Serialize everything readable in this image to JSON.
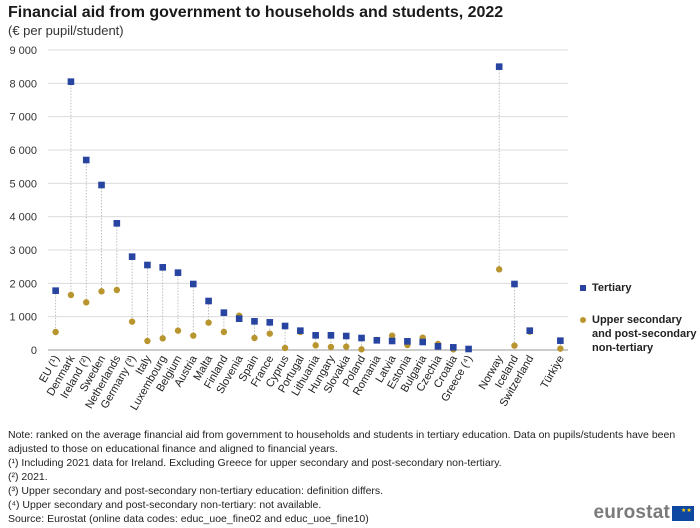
{
  "title": "Financial aid from government to households and students, 2022",
  "subtitle": "(€ per pupil/student)",
  "chart_data": {
    "type": "scatter",
    "categories": [
      "EU (¹)",
      "Denmark",
      "Ireland (²)",
      "Sweden",
      "Netherlands",
      "Germany (³)",
      "Italy",
      "Luxembourg",
      "Belgium",
      "Austria",
      "Malta",
      "Finland",
      "Slovenia",
      "Spain",
      "France",
      "Cyprus",
      "Portugal",
      "Lithuania",
      "Hungary",
      "Slovakia",
      "Poland",
      "Romania",
      "Latvia",
      "Estonia",
      "Bulgaria",
      "Czechia",
      "Croatia",
      "Greece (⁴)",
      "",
      "Norway",
      "Iceland",
      "Switzerland",
      "",
      "Türkiye"
    ],
    "series": [
      {
        "name": "Tertiary",
        "color": "#2644a0",
        "marker": "square",
        "values": [
          1780,
          8050,
          5700,
          4950,
          3800,
          2800,
          2550,
          2480,
          2320,
          1980,
          1470,
          1120,
          940,
          860,
          830,
          720,
          580,
          440,
          440,
          420,
          360,
          290,
          270,
          260,
          240,
          110,
          80,
          30,
          null,
          8500,
          1980,
          580,
          null,
          280
        ]
      },
      {
        "name": "Upper secondary and post-secondary non-tertiary",
        "color": "#b8952e",
        "marker": "circle",
        "values": [
          540,
          1650,
          1430,
          1760,
          1800,
          850,
          270,
          350,
          580,
          430,
          820,
          540,
          1030,
          360,
          490,
          60,
          540,
          140,
          90,
          100,
          20,
          300,
          430,
          150,
          370,
          180,
          20,
          null,
          null,
          2420,
          130,
          550,
          null,
          40
        ]
      }
    ],
    "yticks": [
      "0",
      "1 000",
      "2 000",
      "3 000",
      "4 000",
      "5 000",
      "6 000",
      "7 000",
      "8 000",
      "9 000"
    ],
    "ylim": [
      0,
      9000
    ]
  },
  "legend": {
    "tertiary": "Tertiary",
    "upper_line1": "Upper secondary",
    "upper_line2": "and post-secondary",
    "upper_line3": "non-tertiary"
  },
  "notes": [
    "Note: ranked on the average financial aid from government to households and students in tertiary education. Data on pupils/students have been adjusted to those on educational finance and aligned to financial years.",
    "(¹) Including 2021 data for Ireland. Excluding Greece for upper secondary and post-secondary non-tertiary.",
    "(²) 2021.",
    "(³) Upper secondary and post-secondary non-tertiary education: definition differs.",
    "(⁴) Upper secondary and post-secondary non-tertiary: not available.",
    "Source: Eurostat (online data codes: educ_uoe_fine02 and educ_uoe_fine10)"
  ],
  "logo": "eurostat",
  "colors": {
    "tertiary": "#2644a0",
    "upper": "#b8952e",
    "grid": "#dcdcdc"
  }
}
